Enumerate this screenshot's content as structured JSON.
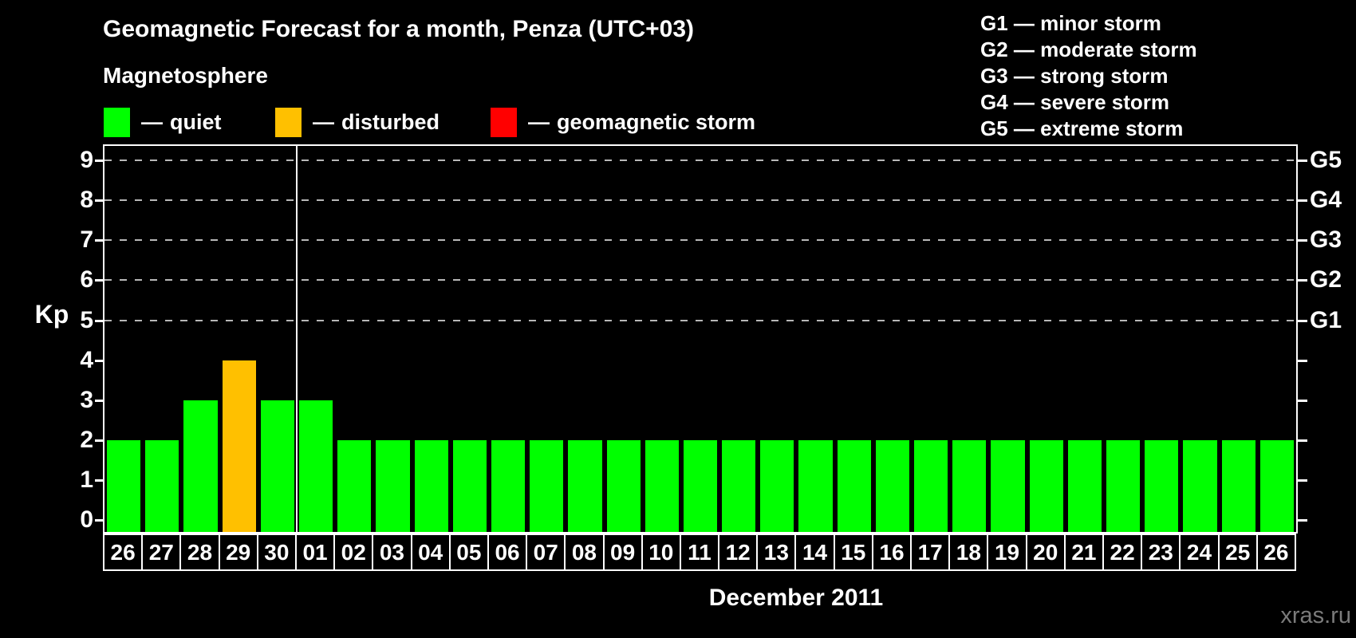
{
  "ui": {
    "dash": "—"
  },
  "header": {
    "title": "Geomagnetic Forecast for a month, Penza (UTC+03)",
    "subtitle": "Magnetosphere"
  },
  "legend": {
    "items": [
      {
        "label": "quiet",
        "state": "quiet",
        "color": "#00FF00"
      },
      {
        "label": "disturbed",
        "state": "disturbed",
        "color": "#FFC000"
      },
      {
        "label": "geomagnetic storm",
        "state": "storm",
        "color": "#FF0000"
      }
    ]
  },
  "g_legend": {
    "items": [
      {
        "code": "G1",
        "desc": "minor storm"
      },
      {
        "code": "G2",
        "desc": "moderate storm"
      },
      {
        "code": "G3",
        "desc": "strong storm"
      },
      {
        "code": "G4",
        "desc": "severe storm"
      },
      {
        "code": "G5",
        "desc": "extreme storm"
      }
    ]
  },
  "watermark": "xras.ru",
  "chart_data": {
    "type": "bar",
    "title": "Geomagnetic Forecast for a month, Penza (UTC+03)",
    "xlabel": "December 2011",
    "ylabel": "Kp",
    "ylim": [
      0,
      9
    ],
    "yticks": [
      0,
      1,
      2,
      3,
      4,
      5,
      6,
      7,
      8,
      9
    ],
    "grid": "dashed horizontal lines at Kp 5-9 only",
    "gridline_kp": [
      5,
      6,
      7,
      8,
      9
    ],
    "right_axis": [
      {
        "label": "G1",
        "kp": 5
      },
      {
        "label": "G2",
        "kp": 6
      },
      {
        "label": "G3",
        "kp": 7
      },
      {
        "label": "G4",
        "kp": 8
      },
      {
        "label": "G5",
        "kp": 9
      }
    ],
    "categories": [
      "26",
      "27",
      "28",
      "29",
      "30",
      "01",
      "02",
      "03",
      "04",
      "05",
      "06",
      "07",
      "08",
      "09",
      "10",
      "11",
      "12",
      "13",
      "14",
      "15",
      "16",
      "17",
      "18",
      "19",
      "20",
      "21",
      "22",
      "23",
      "24",
      "25",
      "26"
    ],
    "values": [
      2,
      2,
      3,
      4,
      3,
      3,
      2,
      2,
      2,
      2,
      2,
      2,
      2,
      2,
      2,
      2,
      2,
      2,
      2,
      2,
      2,
      2,
      2,
      2,
      2,
      2,
      2,
      2,
      2,
      2,
      2
    ],
    "states": [
      "quiet",
      "quiet",
      "quiet",
      "disturbed",
      "quiet",
      "quiet",
      "quiet",
      "quiet",
      "quiet",
      "quiet",
      "quiet",
      "quiet",
      "quiet",
      "quiet",
      "quiet",
      "quiet",
      "quiet",
      "quiet",
      "quiet",
      "quiet",
      "quiet",
      "quiet",
      "quiet",
      "quiet",
      "quiet",
      "quiet",
      "quiet",
      "quiet",
      "quiet",
      "quiet",
      "quiet"
    ],
    "colors": {
      "quiet": "#00FF00",
      "disturbed": "#FFC000",
      "storm": "#FF0000"
    },
    "month_separator_before_index": 5,
    "legend_position": "top-left"
  }
}
